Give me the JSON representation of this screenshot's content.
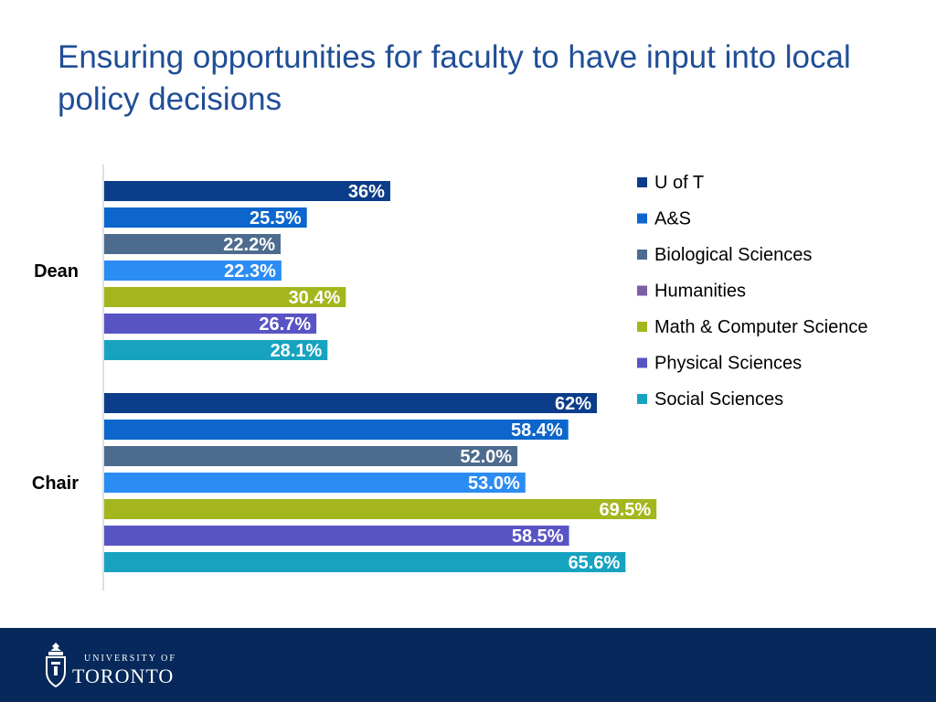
{
  "title": "Ensuring opportunities for faculty to have input into local policy decisions",
  "chart_data": {
    "type": "bar",
    "orientation": "horizontal",
    "categories": [
      "Dean",
      "Chair"
    ],
    "series": [
      {
        "name": "U of T",
        "color": "#0c3d8a",
        "values": [
          36,
          62
        ],
        "labels": [
          "36%",
          "62%"
        ]
      },
      {
        "name": "A&S",
        "color": "#0c66cc",
        "values": [
          25.5,
          58.4
        ],
        "labels": [
          "25.5%",
          "58.4%"
        ]
      },
      {
        "name": "Biological Sciences",
        "color": "#4d6b8e",
        "values": [
          22.2,
          52.0
        ],
        "labels": [
          "22.2%",
          "52.0%"
        ]
      },
      {
        "name": "Humanities",
        "color": "#7c5ea3",
        "values": [
          22.3,
          53.0
        ],
        "labels": [
          "22.3%",
          "53.0%"
        ],
        "bar_color": "#2b8cf3"
      },
      {
        "name": "Math & Computer Science",
        "color": "#a3b61e",
        "values": [
          30.4,
          69.5
        ],
        "labels": [
          "30.4%",
          "69.5%"
        ]
      },
      {
        "name": "Physical Sciences",
        "color": "#5954c4",
        "values": [
          26.7,
          58.5
        ],
        "labels": [
          "26.7%",
          "58.5%"
        ]
      },
      {
        "name": "Social Sciences",
        "color": "#17a3c0",
        "values": [
          28.1,
          65.6
        ],
        "labels": [
          "28.1%",
          "65.6%"
        ]
      }
    ],
    "xlim": [
      0,
      100
    ],
    "grid": false,
    "legend": "right"
  },
  "footer": {
    "logo_small": "UNIVERSITY OF",
    "logo_big": "TORONTO"
  }
}
